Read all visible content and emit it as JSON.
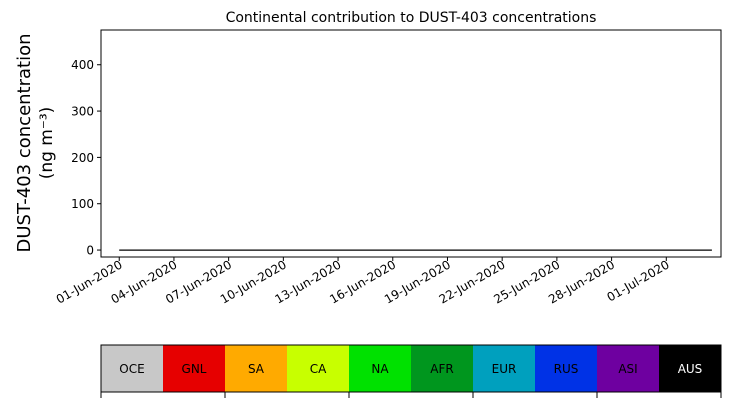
{
  "chart_data": {
    "type": "area",
    "stacked": true,
    "title": "Continental contribution to DUST-403 concentrations",
    "ylabel_line1": "DUST-403 concentration",
    "ylabel_line2": "(ng m⁻³)",
    "ylim": [
      -15,
      475
    ],
    "xlim": [
      -1,
      33
    ],
    "y_ticks": [
      0,
      100,
      200,
      300,
      400
    ],
    "x_ticks": [
      {
        "day": 0,
        "label": "01-Jun-2020"
      },
      {
        "day": 3,
        "label": "04-Jun-2020"
      },
      {
        "day": 6,
        "label": "07-Jun-2020"
      },
      {
        "day": 9,
        "label": "10-Jun-2020"
      },
      {
        "day": 12,
        "label": "13-Jun-2020"
      },
      {
        "day": 15,
        "label": "16-Jun-2020"
      },
      {
        "day": 18,
        "label": "19-Jun-2020"
      },
      {
        "day": 21,
        "label": "22-Jun-2020"
      },
      {
        "day": 24,
        "label": "25-Jun-2020"
      },
      {
        "day": 27,
        "label": "28-Jun-2020"
      },
      {
        "day": 30,
        "label": "01-Jul-2020"
      }
    ],
    "x": [
      0,
      0.5,
      1,
      1.5,
      2,
      2.5,
      3,
      3.5,
      4,
      4.5,
      5,
      5.5,
      6,
      6.5,
      7,
      7.5,
      8,
      8.5,
      9,
      9.5,
      10,
      10.5,
      11,
      11.5,
      12,
      12.5,
      13,
      13.5,
      14,
      14.5,
      15,
      15.5,
      16,
      16.5,
      17,
      17.5,
      18,
      18.5,
      19,
      19.5,
      20,
      20.5,
      21,
      21.5,
      22,
      22.5,
      23,
      23.5,
      24,
      24.5,
      25,
      25.5,
      26,
      26.5,
      27,
      27.5,
      28,
      28.5,
      29,
      29.5,
      30,
      30.5,
      31,
      31.5,
      32,
      32.5
    ],
    "series": [
      {
        "name": "OCE",
        "color": "#c8c8c8",
        "values": [
          0,
          0,
          0,
          0,
          0,
          0,
          0,
          0,
          0,
          0,
          0,
          0,
          0,
          0,
          0,
          0,
          0,
          0,
          0,
          0,
          0,
          0,
          0,
          0,
          0,
          0,
          0,
          0,
          0,
          0,
          0,
          0,
          0,
          0,
          0,
          0,
          0,
          0,
          0,
          0,
          0,
          0,
          0,
          0,
          0,
          0,
          0,
          0,
          0,
          0,
          0,
          0,
          0,
          0,
          0,
          0,
          0,
          0,
          0,
          0,
          0,
          0,
          0,
          0,
          0,
          0
        ]
      },
      {
        "name": "GNL",
        "color": "#e60000",
        "values": [
          0,
          0,
          0,
          0,
          0,
          0,
          0,
          0,
          0,
          0,
          0,
          0,
          0,
          0,
          0,
          0,
          0,
          0,
          0,
          0,
          0,
          0,
          0,
          0,
          0,
          0,
          0,
          0,
          0,
          0,
          0,
          0,
          0,
          0,
          0,
          0,
          0,
          0,
          0,
          0,
          0,
          0,
          0,
          0,
          0,
          0,
          0,
          0,
          0,
          0,
          0,
          0,
          0,
          0,
          0,
          0,
          0,
          0,
          0,
          0,
          0,
          0,
          0,
          0,
          0,
          0
        ]
      },
      {
        "name": "SA",
        "color": "#ffaa00",
        "values": [
          0,
          0,
          0,
          0,
          0,
          0,
          0,
          0,
          0,
          0,
          0,
          0,
          0,
          0,
          0,
          0,
          0,
          0,
          0,
          0,
          0,
          0,
          0,
          0,
          0,
          0,
          0,
          0,
          0,
          0,
          0,
          0,
          0,
          0,
          0,
          0,
          0,
          0,
          0,
          0,
          0,
          0,
          0,
          0,
          0,
          0,
          0,
          0,
          0,
          0,
          0,
          0,
          0,
          0,
          0,
          0,
          0,
          0,
          0,
          0,
          0,
          0,
          0,
          0,
          0,
          0
        ]
      },
      {
        "name": "CA",
        "color": "#c8ff00",
        "values": [
          0,
          0,
          0,
          0,
          0,
          0,
          0,
          0,
          0,
          0,
          0,
          0,
          0,
          0,
          0,
          0,
          0,
          0,
          0,
          0,
          0,
          0,
          0,
          0,
          0,
          0,
          0,
          0,
          0,
          0,
          0,
          0,
          0,
          0,
          0,
          0,
          0,
          0,
          0,
          0,
          0,
          0,
          0,
          0,
          0,
          0,
          0,
          0,
          0,
          0,
          0,
          0,
          0,
          0,
          0,
          0,
          0,
          0,
          0,
          0,
          0,
          0,
          0,
          0,
          0,
          0
        ]
      },
      {
        "name": "NA",
        "color": "#00e100",
        "values": [
          0,
          0,
          0,
          0,
          0,
          0,
          0,
          0,
          0,
          0,
          0,
          0,
          0,
          0,
          0,
          0,
          0,
          0,
          0,
          0,
          0,
          0,
          0,
          0,
          0,
          0,
          0,
          0,
          0,
          0,
          0,
          0,
          0,
          0,
          0,
          0,
          0,
          0,
          0,
          0,
          0,
          0,
          0,
          0,
          0,
          0,
          0,
          0,
          0,
          0,
          0,
          0,
          0,
          0,
          0,
          0,
          0,
          0,
          0,
          0,
          0,
          0,
          0,
          0,
          0,
          0
        ]
      },
      {
        "name": "AFR",
        "color": "#00961e",
        "values": [
          0,
          0,
          0,
          0,
          0,
          0,
          0,
          0,
          0,
          0,
          0,
          0,
          0,
          0,
          0,
          0,
          0,
          0,
          0,
          0,
          0,
          0,
          0,
          0,
          0,
          0,
          0,
          0,
          0,
          0,
          0,
          0,
          0,
          0,
          0,
          0,
          0,
          0,
          0,
          0,
          0,
          0,
          0,
          0,
          0,
          0,
          0,
          0,
          0,
          0,
          0,
          0,
          0,
          0,
          0,
          0,
          0,
          0,
          0,
          0,
          0,
          0,
          0,
          0,
          0,
          0
        ]
      },
      {
        "name": "EUR",
        "color": "#00a0be",
        "values": [
          0,
          0,
          0,
          0,
          0,
          0,
          0,
          0,
          0,
          0,
          0,
          0,
          0,
          0,
          0,
          0,
          0,
          0,
          0,
          0,
          0,
          0,
          0,
          0,
          0,
          0,
          0,
          0,
          0,
          0,
          0,
          0,
          0,
          0,
          0,
          0,
          0,
          0,
          0,
          0,
          0,
          0,
          0,
          0,
          0,
          0,
          0,
          0,
          0,
          0,
          0,
          0,
          0,
          0,
          0,
          0,
          0,
          0,
          0,
          0,
          0,
          0,
          0,
          0,
          0,
          0
        ]
      },
      {
        "name": "RUS",
        "color": "#0032e6",
        "values": [
          0,
          0,
          0,
          0,
          0,
          0,
          0,
          0,
          0,
          0,
          0,
          0,
          0,
          0,
          0,
          0,
          0,
          0,
          0,
          0,
          0,
          0,
          0,
          0,
          0,
          0,
          0,
          0,
          0,
          0,
          0,
          0,
          0,
          0,
          0,
          0,
          0,
          0,
          0,
          0,
          0,
          0,
          0,
          0,
          0,
          0,
          0,
          0,
          0,
          0,
          0,
          0,
          0,
          0,
          0,
          0,
          0,
          0,
          0,
          0,
          0,
          0,
          0,
          0,
          0,
          0
        ]
      },
      {
        "name": "ASI",
        "color": "#6e00a0",
        "values": [
          0,
          0,
          0,
          0,
          0,
          0,
          0,
          0,
          0,
          0,
          0,
          0,
          0,
          0,
          0,
          0,
          0,
          0,
          0,
          0,
          0,
          0,
          0,
          0,
          0,
          0,
          0,
          0,
          0,
          0,
          0,
          0,
          0,
          0,
          0,
          0,
          0,
          0,
          0,
          0,
          0,
          0,
          0,
          0,
          0,
          0,
          0,
          0,
          0,
          0,
          0,
          0,
          0,
          0,
          0,
          0,
          0,
          0,
          0,
          0,
          0,
          0,
          0,
          0,
          0,
          0
        ]
      },
      {
        "name": "AUS",
        "color": "#000000",
        "values": [
          0,
          0,
          0,
          0,
          0,
          0,
          0,
          0,
          0,
          0,
          0,
          0,
          0,
          0,
          0,
          0,
          0,
          0,
          0,
          0,
          0,
          0,
          0,
          0,
          0,
          0,
          0,
          0,
          0,
          0,
          0,
          0,
          0,
          0,
          0,
          0,
          0,
          0,
          0,
          0,
          0,
          0,
          0,
          0,
          0,
          0,
          0,
          0,
          0,
          0,
          0,
          0,
          0,
          0,
          0,
          0,
          0,
          0,
          0,
          0,
          0,
          0,
          0,
          0,
          0,
          0
        ]
      }
    ],
    "legend": [
      {
        "label": "OCE",
        "color": "#c8c8c8",
        "text_color": "#000000"
      },
      {
        "label": "GNL",
        "color": "#e60000",
        "text_color": "#000000"
      },
      {
        "label": "SA",
        "color": "#ffaa00",
        "text_color": "#000000"
      },
      {
        "label": "CA",
        "color": "#c8ff00",
        "text_color": "#000000"
      },
      {
        "label": "NA",
        "color": "#00e100",
        "text_color": "#000000"
      },
      {
        "label": "AFR",
        "color": "#00961e",
        "text_color": "#000000"
      },
      {
        "label": "EUR",
        "color": "#00a0be",
        "text_color": "#000000"
      },
      {
        "label": "RUS",
        "color": "#0032e6",
        "text_color": "#000000"
      },
      {
        "label": "ASI",
        "color": "#6e00a0",
        "text_color": "#000000"
      },
      {
        "label": "AUS",
        "color": "#000000",
        "text_color": "#ffffff"
      }
    ],
    "legend_placement": "bottom"
  }
}
